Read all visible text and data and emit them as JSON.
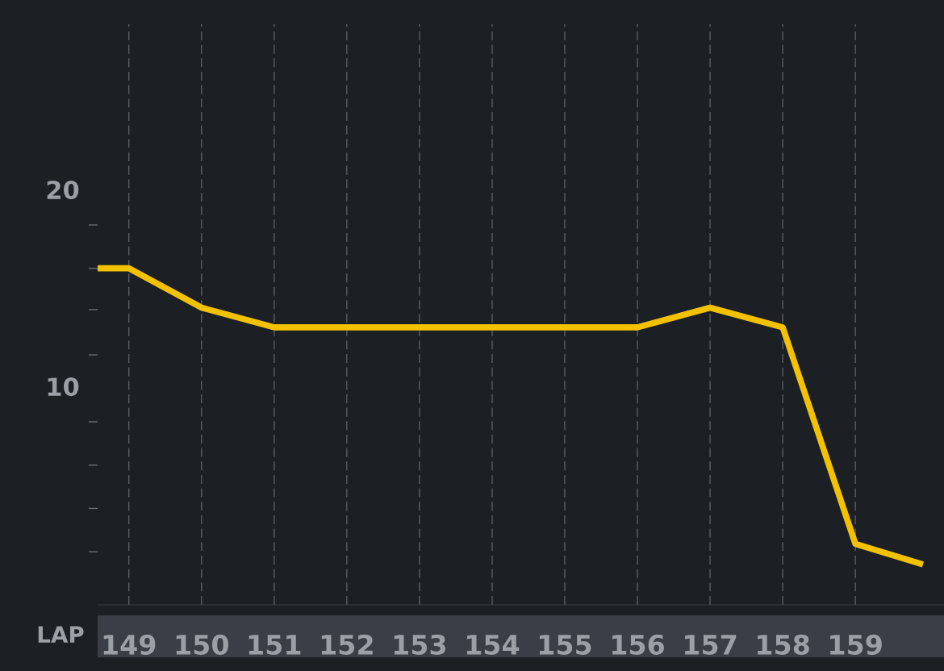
{
  "chart_data": {
    "type": "line",
    "xlabel": "LAP",
    "x": [
      148.57,
      149,
      150,
      151,
      152,
      153,
      154,
      155,
      156,
      157,
      158,
      159,
      159.89
    ],
    "series": [
      {
        "color": "#f2c200",
        "values": [
          16,
          16,
          14,
          13,
          13,
          13,
          13,
          13,
          13,
          14,
          13,
          2,
          1
        ]
      }
    ],
    "xlim": [
      148.57,
      160.22
    ],
    "xticks": [
      149,
      150,
      151,
      152,
      153,
      154,
      155,
      156,
      157,
      158,
      159
    ],
    "ylim": [
      -1.1,
      28.4
    ],
    "yticks": [
      {
        "value": 1.6,
        "label": null
      },
      {
        "value": 3.8,
        "label": null
      },
      {
        "value": 6,
        "label": null
      },
      {
        "value": 8.2,
        "label": null
      },
      10,
      {
        "value": 11.6,
        "label": null
      },
      {
        "value": 13.9,
        "label": null
      },
      {
        "value": 16,
        "label": null
      },
      {
        "value": 18.2,
        "label": null
      },
      20
    ],
    "grid": "x",
    "legend": false,
    "marker": "none",
    "line_style": "solid"
  }
}
